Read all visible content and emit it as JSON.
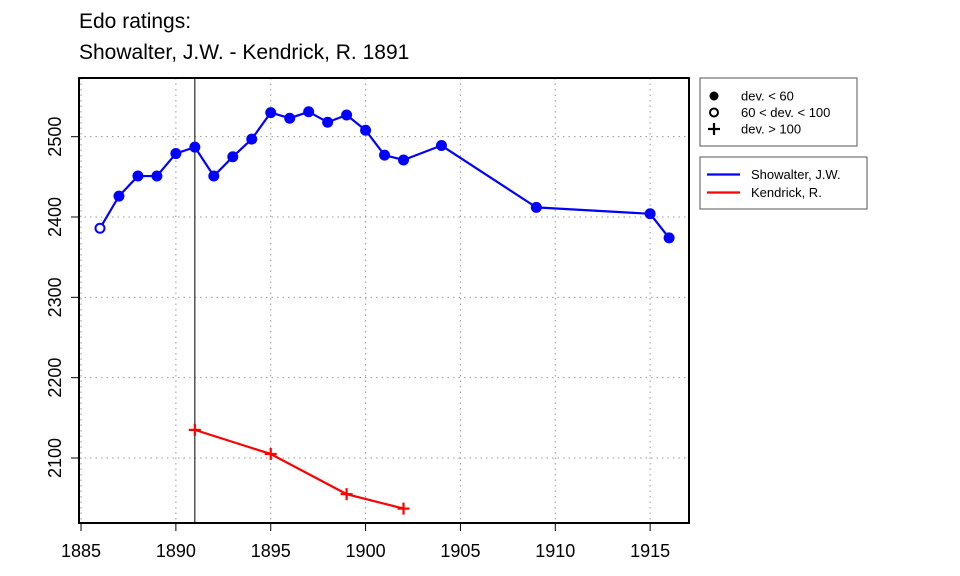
{
  "title_line1": "Edo ratings:",
  "title_line2": "Showalter, J.W. - Kendrick, R. 1891",
  "chart_data": {
    "type": "line",
    "x_range": [
      1885,
      1917
    ],
    "y_range": [
      2025,
      2570
    ],
    "x_ticks": [
      1885,
      1890,
      1895,
      1900,
      1905,
      1910,
      1915
    ],
    "y_ticks": [
      2100,
      2200,
      2300,
      2400,
      2500
    ],
    "grid": true,
    "marker_year": 1891,
    "marker_legend": [
      {
        "label": "dev. < 60",
        "symbol": "filled-circle"
      },
      {
        "label": "60 < dev. < 100",
        "symbol": "open-circle"
      },
      {
        "label": "dev. > 100",
        "symbol": "plus"
      }
    ],
    "series": [
      {
        "name": "Showalter, J.W.",
        "color": "#0000ff",
        "points": [
          {
            "x": 1886,
            "y": 2386,
            "m": "open-circle"
          },
          {
            "x": 1887,
            "y": 2426,
            "m": "filled-circle"
          },
          {
            "x": 1888,
            "y": 2451,
            "m": "filled-circle"
          },
          {
            "x": 1889,
            "y": 2451,
            "m": "filled-circle"
          },
          {
            "x": 1890,
            "y": 2479,
            "m": "filled-circle"
          },
          {
            "x": 1891,
            "y": 2487,
            "m": "filled-circle"
          },
          {
            "x": 1892,
            "y": 2451,
            "m": "filled-circle"
          },
          {
            "x": 1893,
            "y": 2475,
            "m": "filled-circle"
          },
          {
            "x": 1894,
            "y": 2497,
            "m": "filled-circle"
          },
          {
            "x": 1895,
            "y": 2530,
            "m": "filled-circle"
          },
          {
            "x": 1896,
            "y": 2523,
            "m": "filled-circle"
          },
          {
            "x": 1897,
            "y": 2531,
            "m": "filled-circle"
          },
          {
            "x": 1898,
            "y": 2518,
            "m": "filled-circle"
          },
          {
            "x": 1899,
            "y": 2527,
            "m": "filled-circle"
          },
          {
            "x": 1900,
            "y": 2508,
            "m": "filled-circle"
          },
          {
            "x": 1901,
            "y": 2477,
            "m": "filled-circle"
          },
          {
            "x": 1902,
            "y": 2471,
            "m": "filled-circle"
          },
          {
            "x": 1904,
            "y": 2489,
            "m": "filled-circle"
          },
          {
            "x": 1909,
            "y": 2412,
            "m": "filled-circle"
          },
          {
            "x": 1915,
            "y": 2404,
            "m": "filled-circle"
          },
          {
            "x": 1916,
            "y": 2374,
            "m": "filled-circle"
          }
        ]
      },
      {
        "name": "Kendrick, R.",
        "color": "#ff0000",
        "points": [
          {
            "x": 1891,
            "y": 2135,
            "m": "plus"
          },
          {
            "x": 1895,
            "y": 2105,
            "m": "plus"
          },
          {
            "x": 1899,
            "y": 2055,
            "m": "plus"
          },
          {
            "x": 1902,
            "y": 2037,
            "m": "plus"
          }
        ]
      }
    ]
  }
}
